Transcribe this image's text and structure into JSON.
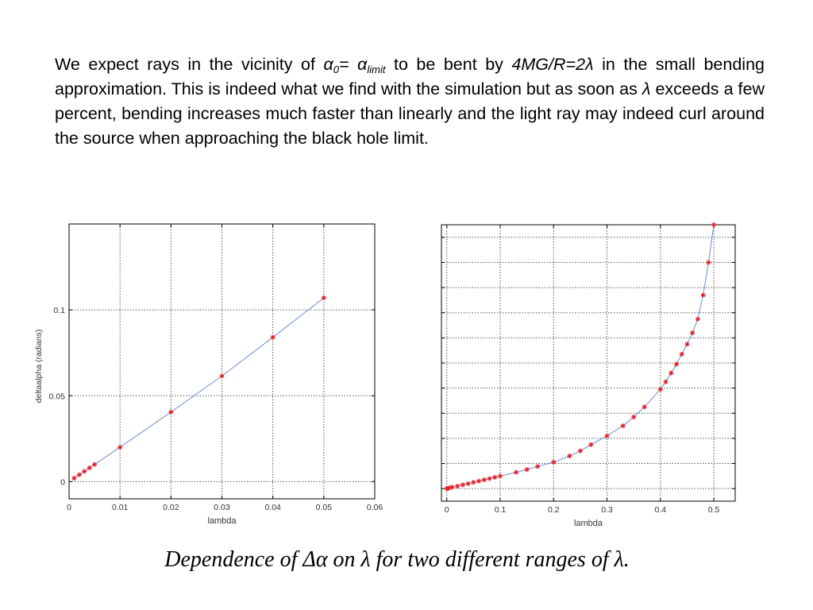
{
  "paragraph": {
    "p1": "We expect rays in the vicinity of ",
    "alpha": "α",
    "sub0": "0",
    "eq": "= ",
    "alpha2": "α",
    "sublimit": "limit",
    "p2": "  to be bent by ",
    "formula": "4MG/R=2λ",
    "p3": " in the small bending approximation. This is indeed what we find with the simulation but as soon as ",
    "lambda": "λ",
    "p4": " exceeds a few percent, bending increases much faster than linearly and the light ray may indeed curl around the source when approaching the black hole limit."
  },
  "caption": "Dependence of Δα on λ for two different ranges of λ.",
  "colors": {
    "line": "#6d8ed6",
    "marker": "#e8202a",
    "grid": "#555555",
    "axis": "#000000"
  },
  "chart_data": [
    {
      "type": "line",
      "xlabel": "lambda",
      "ylabel": "deltaalpha (radians)",
      "xlim": [
        0,
        0.06
      ],
      "ylim": [
        -0.01,
        0.15
      ],
      "x_ticks": [
        0,
        0.01,
        0.02,
        0.03,
        0.04,
        0.05,
        0.06
      ],
      "x_tick_labels": [
        "0",
        "0.01",
        "0.02",
        "0.03",
        "0.04",
        "0.05",
        "0.06"
      ],
      "y_ticks": [
        0,
        0.05,
        0.1
      ],
      "y_tick_labels": [
        "0",
        "0.05",
        "0.1"
      ],
      "grid": true,
      "markers": "plus",
      "series": [
        {
          "x": [
            0.001,
            0.002,
            0.003,
            0.004,
            0.005,
            0.01,
            0.02,
            0.03,
            0.04,
            0.05
          ],
          "values": [
            0.002,
            0.004,
            0.006,
            0.008,
            0.01,
            0.02,
            0.0405,
            0.0615,
            0.084,
            0.107
          ]
        }
      ]
    },
    {
      "type": "line",
      "xlabel": "lambda",
      "ylabel": "",
      "xlim": [
        -0.01,
        0.54
      ],
      "ylim": [
        -0.5,
        10.5
      ],
      "x_ticks": [
        0,
        0.1,
        0.2,
        0.3,
        0.4,
        0.5
      ],
      "x_tick_labels": [
        "0",
        "0.1",
        "0.2",
        "0.3",
        "0.4",
        "0.5"
      ],
      "y_ticks": [
        0,
        1,
        2,
        3,
        4,
        5,
        6,
        7,
        8,
        9,
        10
      ],
      "y_tick_labels": [],
      "grid": true,
      "markers": "plus",
      "series": [
        {
          "x": [
            0,
            0.002,
            0.005,
            0.01,
            0.02,
            0.03,
            0.04,
            0.05,
            0.06,
            0.07,
            0.08,
            0.09,
            0.1,
            0.13,
            0.15,
            0.17,
            0.2,
            0.23,
            0.25,
            0.27,
            0.3,
            0.33,
            0.35,
            0.37,
            0.4,
            0.41,
            0.42,
            0.43,
            0.44,
            0.45,
            0.46,
            0.47,
            0.48,
            0.49,
            0.5
          ],
          "values": [
            0,
            0.01,
            0.03,
            0.06,
            0.1,
            0.15,
            0.2,
            0.25,
            0.3,
            0.35,
            0.4,
            0.45,
            0.5,
            0.65,
            0.76,
            0.88,
            1.05,
            1.3,
            1.5,
            1.75,
            2.1,
            2.5,
            2.85,
            3.25,
            3.95,
            4.25,
            4.6,
            4.95,
            5.35,
            5.75,
            6.2,
            6.75,
            7.7,
            9.0,
            10.5
          ]
        }
      ]
    }
  ]
}
